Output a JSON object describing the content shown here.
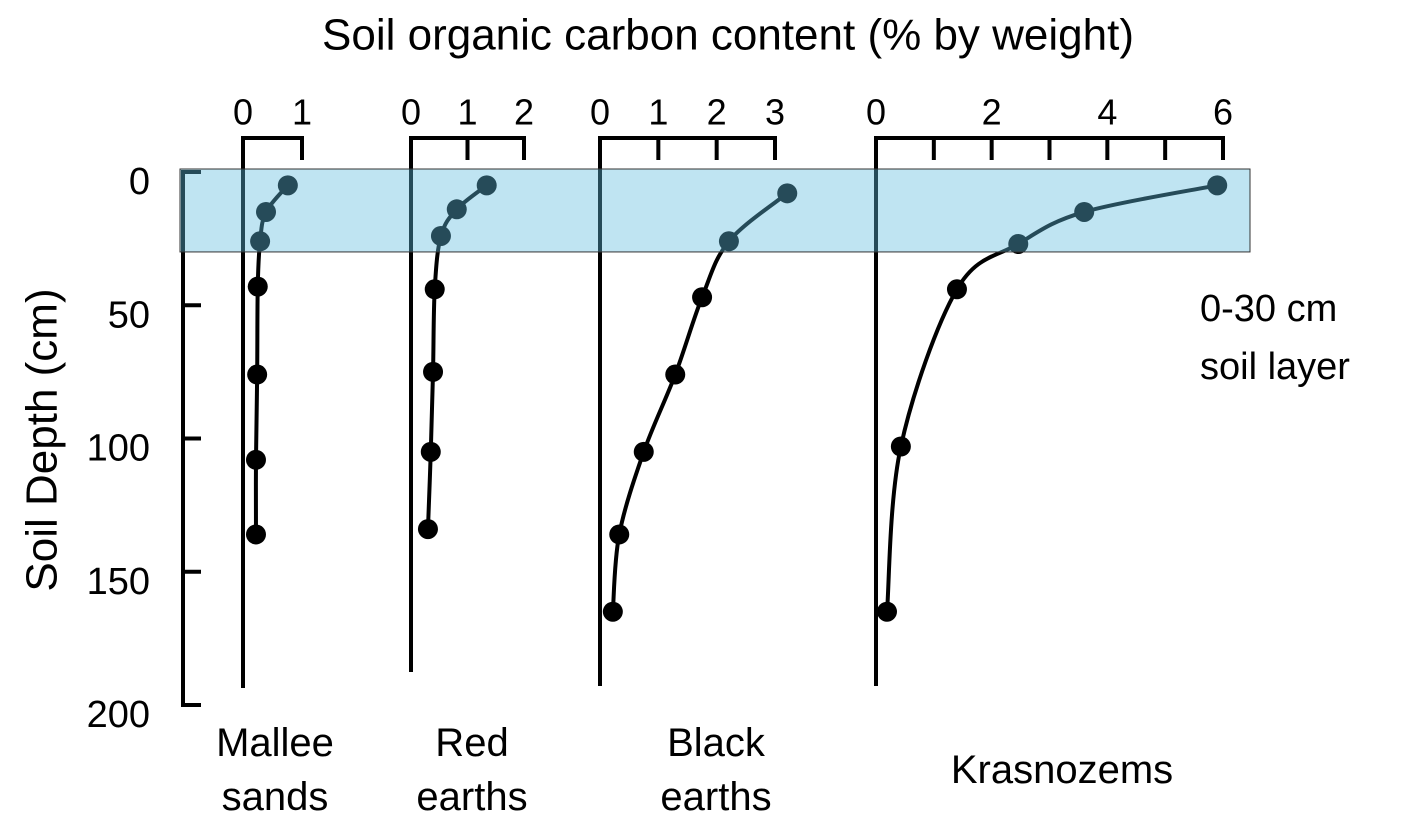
{
  "chart_data": {
    "type": "line",
    "title": "Soil organic carbon content (% by weight)",
    "ylabel": "Soil Depth (cm)",
    "ylim": [
      0,
      200
    ],
    "yticks": [
      0,
      50,
      100,
      150,
      200
    ],
    "y_inverted": true,
    "highlight": [
      0,
      30
    ],
    "highlight_color": "rgba(95,187,222,0.4)",
    "annotation": "0-30 cm\nsoil layer",
    "color": "#000000",
    "panels": [
      {
        "name": "Mallee\nsands",
        "xlim": [
          0,
          1
        ],
        "xticks": [
          0,
          1
        ],
        "minor_xticks": [],
        "x": [
          0.76,
          0.39,
          0.29,
          0.25,
          0.24,
          0.22,
          0.22
        ],
        "values": [
          5,
          15,
          26,
          43,
          76,
          108,
          136
        ]
      },
      {
        "name": "Red\nearths",
        "xlim": [
          0,
          2
        ],
        "xticks": [
          0,
          1,
          2
        ],
        "minor_xticks": [],
        "x": [
          1.34,
          0.81,
          0.53,
          0.42,
          0.39,
          0.35,
          0.3
        ],
        "values": [
          5,
          14,
          24,
          44,
          75,
          105,
          134
        ]
      },
      {
        "name": "Black\nearths",
        "xlim": [
          0,
          3
        ],
        "xticks": [
          0,
          1,
          2,
          3
        ],
        "minor_xticks": [],
        "x": [
          3.21,
          2.21,
          1.75,
          1.29,
          0.75,
          0.33,
          0.22
        ],
        "values": [
          8,
          26,
          47,
          76,
          105,
          136,
          165
        ]
      },
      {
        "name": "Krasnozems",
        "xlim": [
          0,
          6
        ],
        "xticks": [
          0,
          2,
          4,
          6
        ],
        "minor_xticks": [
          1,
          3,
          5
        ],
        "x": [
          5.9,
          3.6,
          2.46,
          1.4,
          0.43,
          0.19
        ],
        "values": [
          5,
          15,
          27,
          44,
          103,
          165
        ]
      }
    ]
  }
}
